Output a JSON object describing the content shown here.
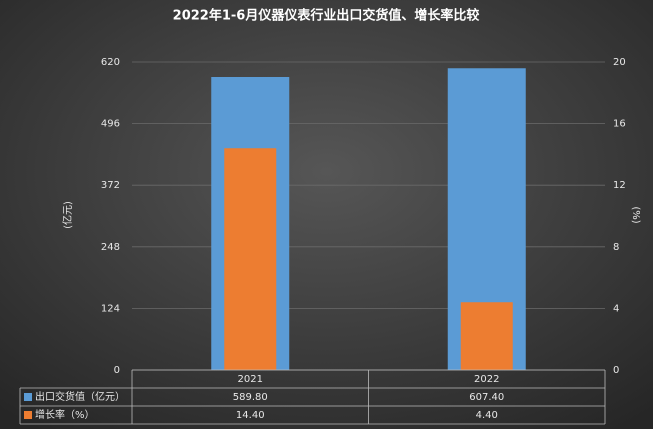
{
  "chart_data": {
    "type": "bar",
    "title": "2022年1-6月仪器仪表行业出口交货值、增长率比较",
    "y_label": "(亿元)",
    "y2_label": "(%)",
    "categories": [
      "2021",
      "2022"
    ],
    "series": [
      {
        "name": "出口交货值（亿元）",
        "color": "#5b9bd5",
        "values": [
          589.8,
          607.4
        ],
        "value_labels": [
          "589.80",
          "607.40"
        ]
      },
      {
        "name": "增长率（%）",
        "color": "#ed7d31",
        "axis": "y2",
        "values": [
          14.4,
          4.4
        ],
        "value_labels": [
          "14.40",
          "4.40"
        ]
      }
    ],
    "ylim": [
      0,
      620
    ],
    "yticks": [
      0,
      124,
      248,
      372,
      496,
      620
    ],
    "y2lim": [
      0,
      20
    ],
    "y2ticks": [
      0,
      4,
      8,
      12,
      16,
      20
    ],
    "grid": true
  }
}
